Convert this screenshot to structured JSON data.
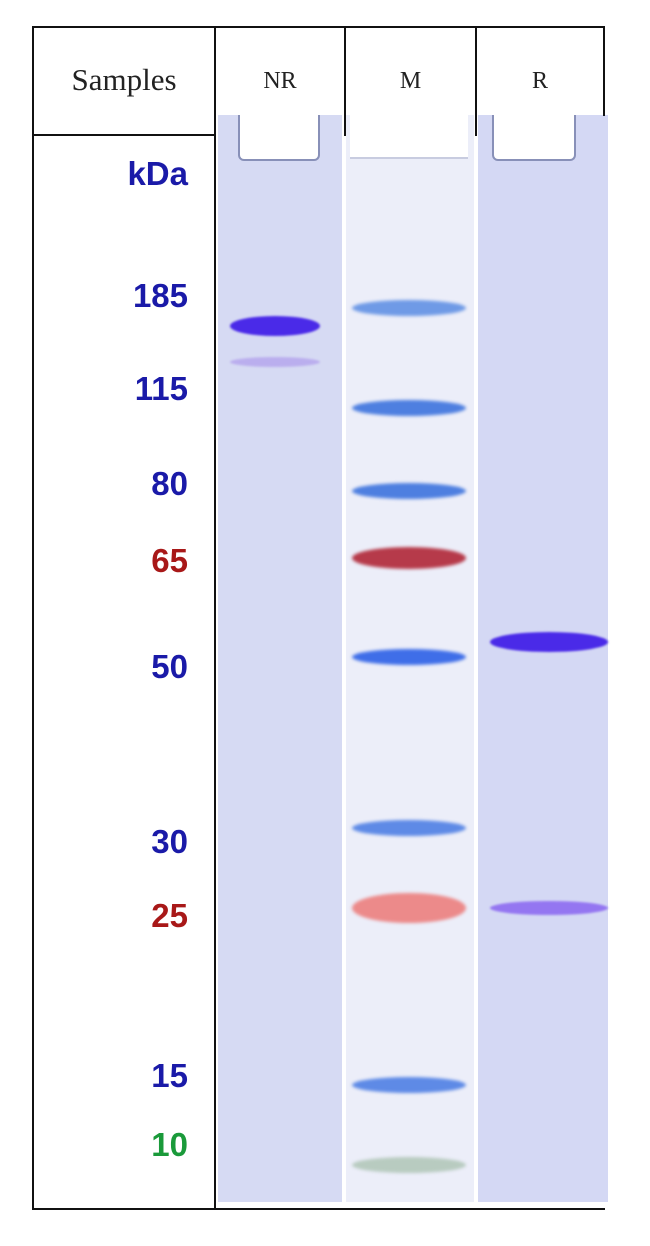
{
  "header": {
    "samples": "Samples",
    "lanes": [
      "NR",
      "M",
      "R"
    ]
  },
  "unit_label": {
    "text": "kDa",
    "color": "#1a1aa8"
  },
  "marker": [
    {
      "kda": "185",
      "color": "#1a1aa8",
      "band_color": "#6f9ae6"
    },
    {
      "kda": "115",
      "color": "#1a1aa8",
      "band_color": "#4e7fe0"
    },
    {
      "kda": "80",
      "color": "#1a1aa8",
      "band_color": "#4e7fe0"
    },
    {
      "kda": "65",
      "color": "#a81818",
      "band_color": "#b63a4a"
    },
    {
      "kda": "50",
      "color": "#1a1aa8",
      "band_color": "#3f6ee8"
    },
    {
      "kda": "30",
      "color": "#1a1aa8",
      "band_color": "#5e8ae6"
    },
    {
      "kda": "25",
      "color": "#a81818",
      "band_color": "#ec8a8a"
    },
    {
      "kda": "15",
      "color": "#1a1aa8",
      "band_color": "#5e8ae6"
    },
    {
      "kda": "10",
      "color": "#1a9a3a",
      "band_color": "#b8cbc0"
    }
  ],
  "sample_bands": {
    "NR": [
      {
        "kda": 170,
        "intensity": 1.0,
        "color": "#4a2ae8"
      },
      {
        "kda": 143,
        "intensity": 0.35,
        "color": "#9a7ae8"
      }
    ],
    "R": [
      {
        "kda": 52,
        "intensity": 1.0,
        "color": "#4a2ae8"
      },
      {
        "kda": 25,
        "intensity": 0.7,
        "color": "#7a4ef0"
      }
    ]
  },
  "colors": {
    "gel": "#d8dcf4",
    "marker_lane": "#eceef9"
  }
}
